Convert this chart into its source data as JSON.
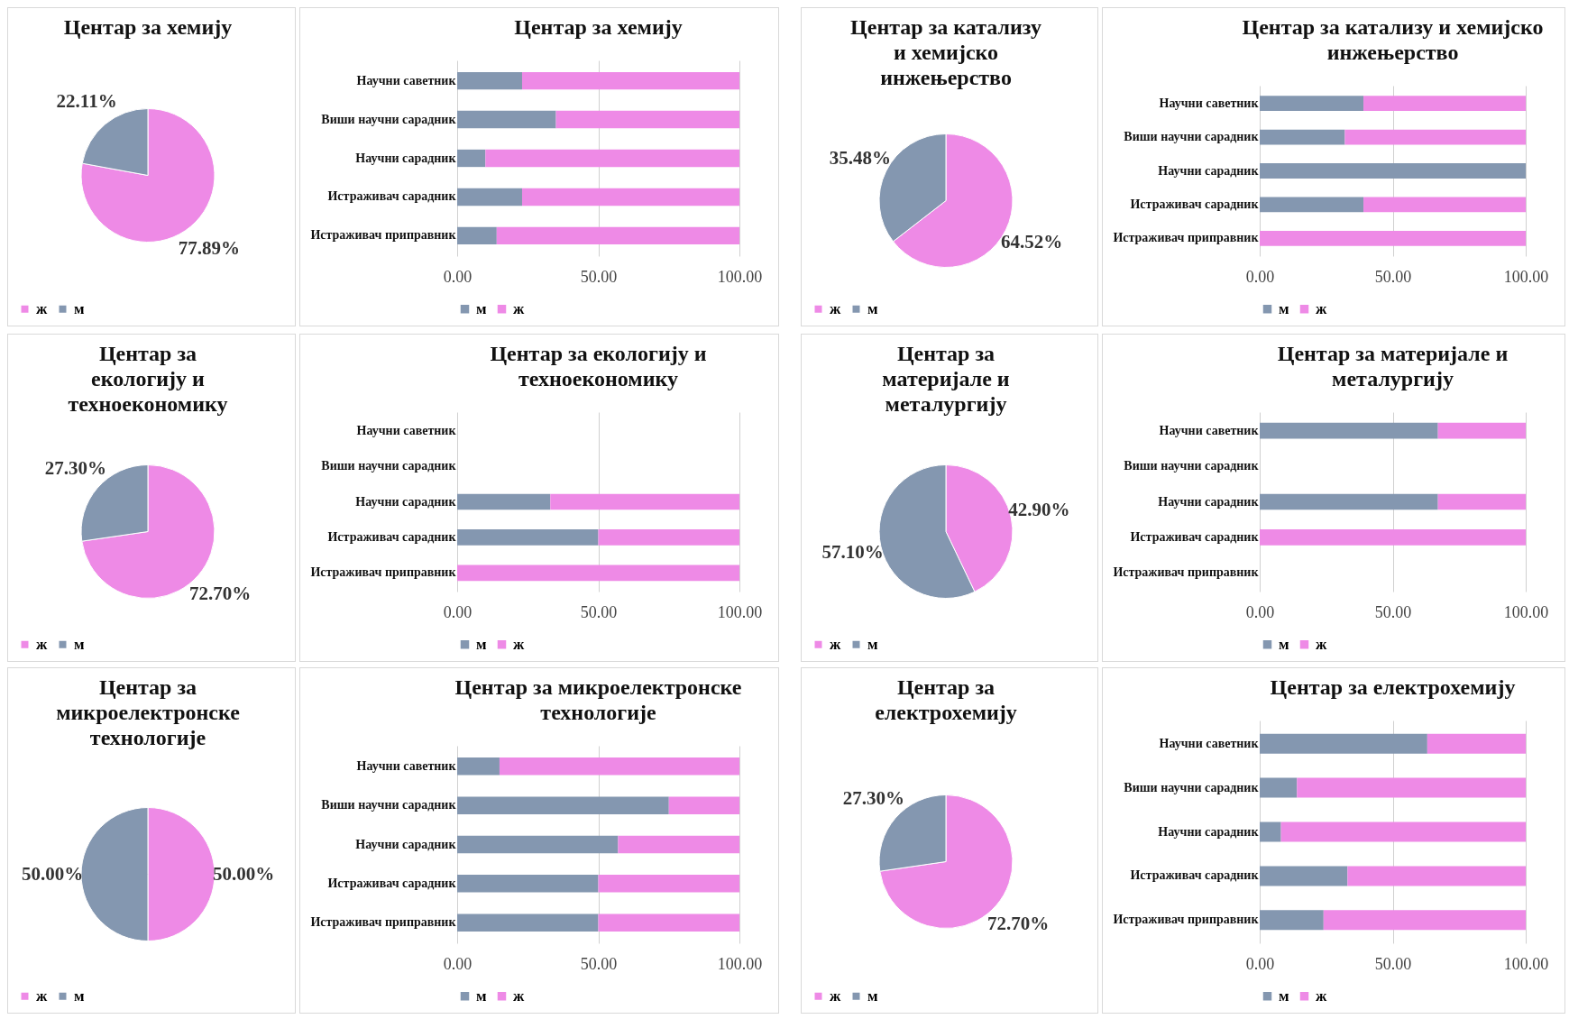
{
  "chart_data": [
    {
      "type": "pie",
      "title": "Центар за хемију",
      "categories": [
        "ж",
        "м"
      ],
      "values": [
        77.89,
        22.11
      ],
      "colors": [
        "#ee8ae6",
        "#8497b0"
      ],
      "value_labels": [
        "77.89%",
        "22.11%"
      ],
      "legend": "bottom left"
    },
    {
      "type": "bar",
      "orientation": "horizontal",
      "stacked": true,
      "title": "Центар за хемију",
      "categories": [
        "Научни саветник",
        "Виши научни сарадник",
        "Научни сарадник",
        "Истраживач сарадник",
        "Истраживач приправник"
      ],
      "series": [
        {
          "name": "м",
          "color": "#8497b0",
          "values": [
            23,
            35,
            10,
            23,
            14
          ]
        },
        {
          "name": "ж",
          "color": "#ee8ae6",
          "values": [
            77,
            65,
            90,
            77,
            86
          ]
        }
      ],
      "xlim": [
        0,
        100
      ],
      "xticks": [
        {
          "value": 0,
          "label": "0.00"
        },
        {
          "value": 50,
          "label": "50.00"
        },
        {
          "value": 100,
          "label": "100.00"
        }
      ],
      "grid": "x",
      "legend": "bottom left"
    },
    {
      "type": "pie",
      "title": "Центар за катализу и хемијско инжењерство",
      "categories": [
        "ж",
        "м"
      ],
      "values": [
        64.52,
        35.48
      ],
      "colors": [
        "#ee8ae6",
        "#8497b0"
      ],
      "value_labels": [
        "64.52%",
        "35.48%"
      ],
      "legend": "bottom left"
    },
    {
      "type": "bar",
      "orientation": "horizontal",
      "stacked": true,
      "title": "Центар за катализу и хемијско инжењерство",
      "categories": [
        "Научни саветник",
        "Виши научни сарадник",
        "Научни сарадник",
        "Истраживач сарадник",
        "Истраживач приправник"
      ],
      "series": [
        {
          "name": "м",
          "color": "#8497b0",
          "values": [
            39,
            32,
            100,
            39,
            0
          ]
        },
        {
          "name": "ж",
          "color": "#ee8ae6",
          "values": [
            61,
            68,
            0,
            61,
            100
          ]
        }
      ],
      "xlim": [
        0,
        100
      ],
      "xticks": [
        {
          "value": 0,
          "label": "0.00"
        },
        {
          "value": 50,
          "label": "50.00"
        },
        {
          "value": 100,
          "label": "100.00"
        }
      ],
      "grid": "x",
      "legend": "bottom left"
    },
    {
      "type": "pie",
      "title": "Центар за екологију и техноекономику",
      "categories": [
        "ж",
        "м"
      ],
      "values": [
        72.7,
        27.3
      ],
      "colors": [
        "#ee8ae6",
        "#8497b0"
      ],
      "value_labels": [
        "72.70%",
        "27.30%"
      ],
      "legend": "bottom left"
    },
    {
      "type": "bar",
      "orientation": "horizontal",
      "stacked": true,
      "title": "Центар за екологију и техноекономику",
      "categories": [
        "Научни саветник",
        "Виши научни сарадник",
        "Научни сарадник",
        "Истраживач сарадник",
        "Истраживач приправник"
      ],
      "series": [
        {
          "name": "м",
          "color": "#8497b0",
          "values": [
            null,
            null,
            33,
            50,
            0
          ]
        },
        {
          "name": "ж",
          "color": "#ee8ae6",
          "values": [
            null,
            null,
            67,
            50,
            100
          ]
        }
      ],
      "xlim": [
        0,
        100
      ],
      "xticks": [
        {
          "value": 0,
          "label": "0.00"
        },
        {
          "value": 50,
          "label": "50.00"
        },
        {
          "value": 100,
          "label": "100.00"
        }
      ],
      "grid": "x",
      "legend": "bottom left"
    },
    {
      "type": "pie",
      "title": "Центар за материјале и металургију",
      "categories": [
        "ж",
        "м"
      ],
      "values": [
        42.9,
        57.1
      ],
      "colors": [
        "#ee8ae6",
        "#8497b0"
      ],
      "value_labels": [
        "42.90%",
        "57.10%"
      ],
      "legend": "bottom left"
    },
    {
      "type": "bar",
      "orientation": "horizontal",
      "stacked": true,
      "title": "Центар за материјале и металургију",
      "categories": [
        "Научни саветник",
        "Виши научни сарадник",
        "Научни сарадник",
        "Истраживач сарадник",
        "Истраживач приправник"
      ],
      "series": [
        {
          "name": "м",
          "color": "#8497b0",
          "values": [
            67,
            null,
            67,
            0,
            null
          ]
        },
        {
          "name": "ж",
          "color": "#ee8ae6",
          "values": [
            33,
            null,
            33,
            100,
            null
          ]
        }
      ],
      "xlim": [
        0,
        100
      ],
      "xticks": [
        {
          "value": 0,
          "label": "0.00"
        },
        {
          "value": 50,
          "label": "50.00"
        },
        {
          "value": 100,
          "label": "100.00"
        }
      ],
      "grid": "x",
      "legend": "bottom left"
    },
    {
      "type": "pie",
      "title": "Центар за микроелектронске технологије",
      "categories": [
        "ж",
        "м"
      ],
      "values": [
        50,
        50
      ],
      "colors": [
        "#ee8ae6",
        "#8497b0"
      ],
      "value_labels": [
        "50.00%",
        "50.00%"
      ],
      "legend": "bottom left"
    },
    {
      "type": "bar",
      "orientation": "horizontal",
      "stacked": true,
      "title": "Центар за микроелектронске технологије",
      "categories": [
        "Научни саветник",
        "Виши научни сарадник",
        "Научни сарадник",
        "Истраживач сарадник",
        "Истраживач приправник"
      ],
      "series": [
        {
          "name": "м",
          "color": "#8497b0",
          "values": [
            15,
            75,
            57,
            50,
            50
          ]
        },
        {
          "name": "ж",
          "color": "#ee8ae6",
          "values": [
            85,
            25,
            43,
            50,
            50
          ]
        }
      ],
      "xlim": [
        0,
        100
      ],
      "xticks": [
        {
          "value": 0,
          "label": "0.00"
        },
        {
          "value": 50,
          "label": "50.00"
        },
        {
          "value": 100,
          "label": "100.00"
        }
      ],
      "grid": "x",
      "legend": "bottom left"
    },
    {
      "type": "pie",
      "title": "Центар за електрохемију",
      "categories": [
        "ж",
        "м"
      ],
      "values": [
        72.7,
        27.3
      ],
      "colors": [
        "#ee8ae6",
        "#8497b0"
      ],
      "value_labels": [
        "72.70%",
        "27.30%"
      ],
      "legend": "bottom left"
    },
    {
      "type": "bar",
      "orientation": "horizontal",
      "stacked": true,
      "title": "Центар за електрохемију",
      "categories": [
        "Научни саветник",
        "Виши научни сарадник",
        "Научни сарадник",
        "Истраживач сарадник",
        "Истраживач приправник"
      ],
      "series": [
        {
          "name": "м",
          "color": "#8497b0",
          "values": [
            63,
            14,
            8,
            33,
            24
          ]
        },
        {
          "name": "ж",
          "color": "#ee8ae6",
          "values": [
            37,
            86,
            92,
            67,
            76
          ]
        }
      ],
      "xlim": [
        0,
        100
      ],
      "xticks": [
        {
          "value": 0,
          "label": "0.00"
        },
        {
          "value": 50,
          "label": "50.00"
        },
        {
          "value": 100,
          "label": "100.00"
        }
      ],
      "grid": "x",
      "legend": "bottom left"
    }
  ]
}
